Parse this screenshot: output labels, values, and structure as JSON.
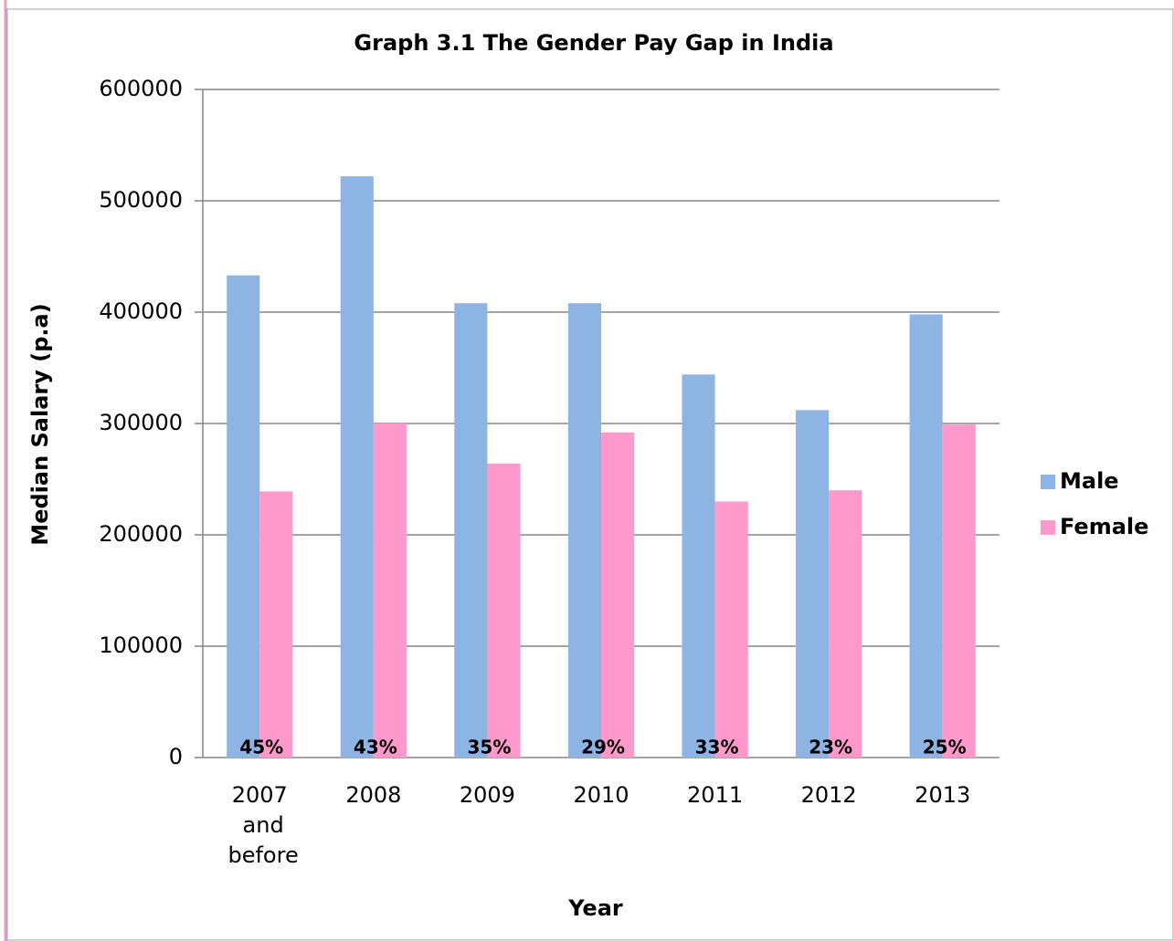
{
  "chart_data": {
    "type": "bar",
    "title": "Graph 3.1 The Gender Pay Gap in India",
    "x_label": "Year",
    "y_label": "Median Salary (p.a)",
    "categories": [
      "2007 and before",
      "2008",
      "2009",
      "2010",
      "2011",
      "2012",
      "2013"
    ],
    "series": [
      {
        "name": "Male",
        "color": "#8eb4e3",
        "values": [
          433000,
          522000,
          408000,
          408000,
          344000,
          312000,
          398000
        ]
      },
      {
        "name": "Female",
        "color": "#ff99cc",
        "values": [
          239000,
          300000,
          264000,
          292000,
          230000,
          240000,
          299000
        ]
      }
    ],
    "annotations": [
      "45%",
      "43%",
      "35%",
      "29%",
      "33%",
      "23%",
      "25%"
    ],
    "ylim": [
      0,
      600000
    ],
    "yticks": [
      0,
      100000,
      200000,
      300000,
      400000,
      500000,
      600000
    ],
    "grid": true,
    "legend": "right"
  }
}
